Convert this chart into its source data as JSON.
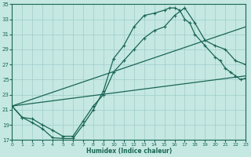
{
  "xlabel": "Humidex (Indice chaleur)",
  "bg_color": "#c5e8e2",
  "grid_color": "#a0ccca",
  "line_color": "#1a6655",
  "xlim": [
    0,
    23
  ],
  "ylim": [
    17,
    35
  ],
  "yticks": [
    17,
    19,
    21,
    23,
    25,
    27,
    29,
    31,
    33,
    35
  ],
  "xticks": [
    0,
    1,
    2,
    3,
    4,
    5,
    6,
    7,
    8,
    9,
    10,
    11,
    12,
    13,
    14,
    15,
    16,
    17,
    18,
    19,
    20,
    21,
    22,
    23
  ],
  "curve1_x": [
    0,
    1,
    2,
    3,
    4,
    5,
    6,
    7,
    8,
    9,
    10,
    11,
    12,
    13,
    14,
    15,
    15.5,
    16,
    16.5,
    17,
    17.5,
    18,
    19,
    20,
    20.5,
    21,
    21.5,
    22,
    22.5,
    23
  ],
  "curve1_y": [
    21.5,
    20.0,
    19.3,
    18.5,
    17.3,
    17.2,
    17.2,
    19.0,
    21.0,
    23.5,
    27.8,
    29.5,
    32.0,
    33.5,
    33.8,
    34.2,
    34.5,
    34.5,
    34.2,
    33.0,
    32.5,
    31.0,
    29.5,
    28.0,
    27.5,
    26.5,
    26.0,
    25.5,
    25.0,
    25.2
  ],
  "curve2_x": [
    0,
    1,
    2,
    3,
    4,
    5,
    6,
    7,
    8,
    9,
    10,
    11,
    12,
    13,
    14,
    15,
    16,
    17,
    18,
    19,
    20,
    21,
    22,
    23
  ],
  "curve2_y": [
    21.5,
    20.0,
    19.8,
    19.0,
    18.3,
    17.5,
    17.5,
    19.5,
    21.5,
    23.0,
    26.0,
    27.5,
    29.0,
    30.5,
    31.5,
    32.0,
    33.5,
    34.5,
    32.5,
    30.2,
    29.5,
    29.0,
    27.5,
    27.0
  ],
  "line3_x": [
    0,
    23
  ],
  "line3_y": [
    21.5,
    32.0
  ],
  "line4_x": [
    0,
    23
  ],
  "line4_y": [
    21.5,
    25.5
  ]
}
